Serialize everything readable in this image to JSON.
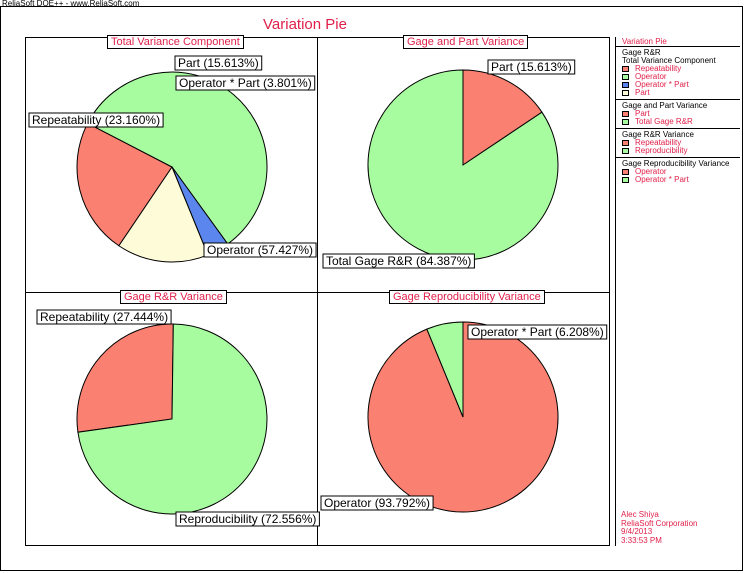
{
  "header": {
    "app_text": "ReliaSoft DOE++ - www.ReliaSoft.com"
  },
  "title": "Variation Pie",
  "colors": {
    "red": "#fa8072",
    "green": "#a8fca0",
    "yellow": "#fdfbd8",
    "blue": "#5b86ee",
    "accent": "#e0204a"
  },
  "chart_data": [
    {
      "type": "pie",
      "title": "Total Variance Component",
      "slices": [
        {
          "label": "Repeatability (23.160%)",
          "value": 23.16,
          "color": "#fa8072"
        },
        {
          "label": "Operator (57.427%)",
          "value": 57.427,
          "color": "#a8fca0"
        },
        {
          "label": "Operator * Part (3.801%)",
          "value": 3.801,
          "color": "#5b86ee"
        },
        {
          "label": "Part (15.613%)",
          "value": 15.613,
          "color": "#fdfbd8"
        }
      ]
    },
    {
      "type": "pie",
      "title": "Gage and Part Variance",
      "slices": [
        {
          "label": "Part (15.613%)",
          "value": 15.613,
          "color": "#fa8072"
        },
        {
          "label": "Total Gage R&R (84.387%)",
          "value": 84.387,
          "color": "#a8fca0"
        }
      ]
    },
    {
      "type": "pie",
      "title": "Gage R&R Variance",
      "slices": [
        {
          "label": "Repeatability (27.444%)",
          "value": 27.444,
          "color": "#fa8072"
        },
        {
          "label": "Reproducibility (72.556%)",
          "value": 72.556,
          "color": "#a8fca0"
        }
      ]
    },
    {
      "type": "pie",
      "title": "Gage Reproducibility Variance",
      "slices": [
        {
          "label": "Operator (93.792%)",
          "value": 93.792,
          "color": "#fa8072"
        },
        {
          "label": "Operator * Part (6.208%)",
          "value": 6.208,
          "color": "#a8fca0"
        }
      ]
    }
  ],
  "legend": {
    "title": "Variation Pie",
    "groups": [
      {
        "heading": [
          "Gage R&R",
          "Total Variance Component"
        ],
        "items": [
          {
            "label": "Repeatability",
            "color": "#fa8072"
          },
          {
            "label": "Operator",
            "color": "#a8fca0"
          },
          {
            "label": "Operator * Part",
            "color": "#5b86ee"
          },
          {
            "label": "Part",
            "color": "#fdfbd8"
          }
        ]
      },
      {
        "heading": [
          "Gage and Part Variance"
        ],
        "items": [
          {
            "label": "Part",
            "color": "#fa8072"
          },
          {
            "label": "Total Gage R&R",
            "color": "#a8fca0"
          }
        ]
      },
      {
        "heading": [
          "Gage R&R Variance"
        ],
        "items": [
          {
            "label": "Repeatability",
            "color": "#fa8072"
          },
          {
            "label": "Reproducibility",
            "color": "#a8fca0"
          }
        ]
      },
      {
        "heading": [
          "Gage Reproducibility Variance"
        ],
        "items": [
          {
            "label": "Operator",
            "color": "#fa8072"
          },
          {
            "label": "Operator * Part",
            "color": "#a8fca0"
          }
        ]
      }
    ]
  },
  "footer": {
    "user": "Alec Shiya",
    "company": "ReliaSoft Corporation",
    "date": "9/4/2013",
    "time": "3:33:53 PM"
  }
}
